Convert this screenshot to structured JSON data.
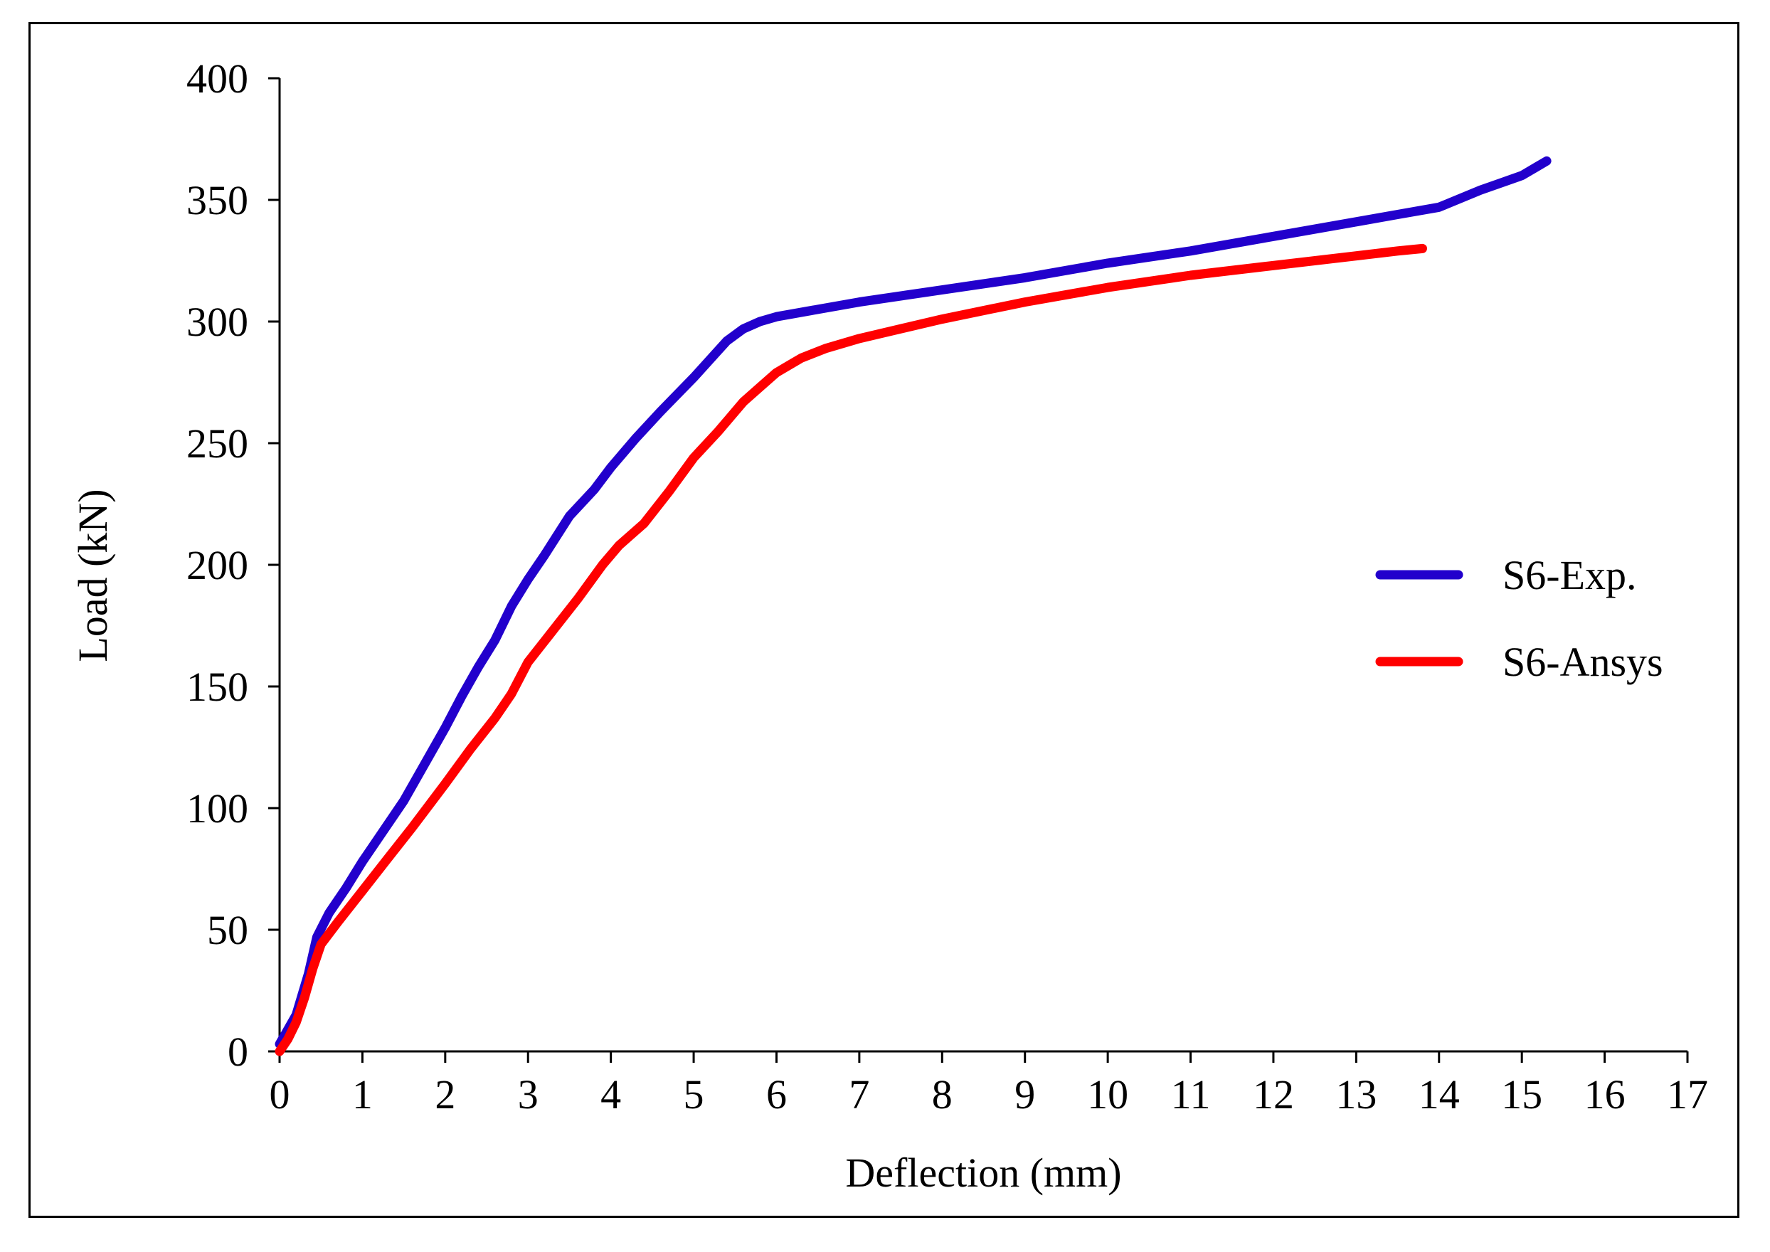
{
  "chart_data": {
    "type": "line",
    "title": "",
    "xlabel": "Deflection (mm)",
    "ylabel": "Load (kN)",
    "xlim": [
      0,
      17
    ],
    "ylim": [
      0,
      400
    ],
    "xticks": [
      0,
      1,
      2,
      3,
      4,
      5,
      6,
      7,
      8,
      9,
      10,
      11,
      12,
      13,
      14,
      15,
      16,
      17
    ],
    "yticks": [
      0,
      50,
      100,
      150,
      200,
      250,
      300,
      350,
      400
    ],
    "grid": false,
    "legend_position": "right",
    "series": [
      {
        "name": "S6-Exp.",
        "color": "#2200CC",
        "x": [
          0,
          0.2,
          0.35,
          0.45,
          0.6,
          0.8,
          1.0,
          1.2,
          1.5,
          1.8,
          2.0,
          2.2,
          2.4,
          2.6,
          2.8,
          3.0,
          3.2,
          3.5,
          3.8,
          4.0,
          4.3,
          4.6,
          5.0,
          5.4,
          5.6,
          5.8,
          6.0,
          6.5,
          7.0,
          8.0,
          9.0,
          10.0,
          11.0,
          12.0,
          13.0,
          13.5,
          14.0,
          14.5,
          15.0,
          15.3
        ],
        "y": [
          3,
          15,
          32,
          47,
          57,
          67,
          78,
          88,
          103,
          121,
          133,
          146,
          158,
          169,
          183,
          194,
          204,
          220,
          231,
          240,
          252,
          263,
          277,
          292,
          297,
          300,
          302,
          305,
          308,
          313,
          318,
          324,
          329,
          335,
          341,
          344,
          347,
          354,
          360,
          366
        ]
      },
      {
        "name": "S6-Ansys",
        "color": "#FF0000",
        "x": [
          0,
          0.1,
          0.2,
          0.3,
          0.4,
          0.5,
          0.7,
          1.0,
          1.3,
          1.6,
          2.0,
          2.3,
          2.6,
          2.8,
          3.0,
          3.3,
          3.6,
          3.9,
          4.1,
          4.4,
          4.7,
          5.0,
          5.3,
          5.6,
          5.8,
          6.0,
          6.3,
          6.6,
          7.0,
          8.0,
          9.0,
          10.0,
          11.0,
          12.0,
          13.0,
          13.5,
          13.8
        ],
        "y": [
          0,
          5,
          12,
          22,
          34,
          44,
          53,
          66,
          79,
          92,
          110,
          124,
          137,
          147,
          160,
          173,
          186,
          200,
          208,
          217,
          230,
          244,
          255,
          267,
          273,
          279,
          285,
          289,
          293,
          301,
          308,
          314,
          319,
          323,
          327,
          329,
          330
        ]
      }
    ]
  }
}
